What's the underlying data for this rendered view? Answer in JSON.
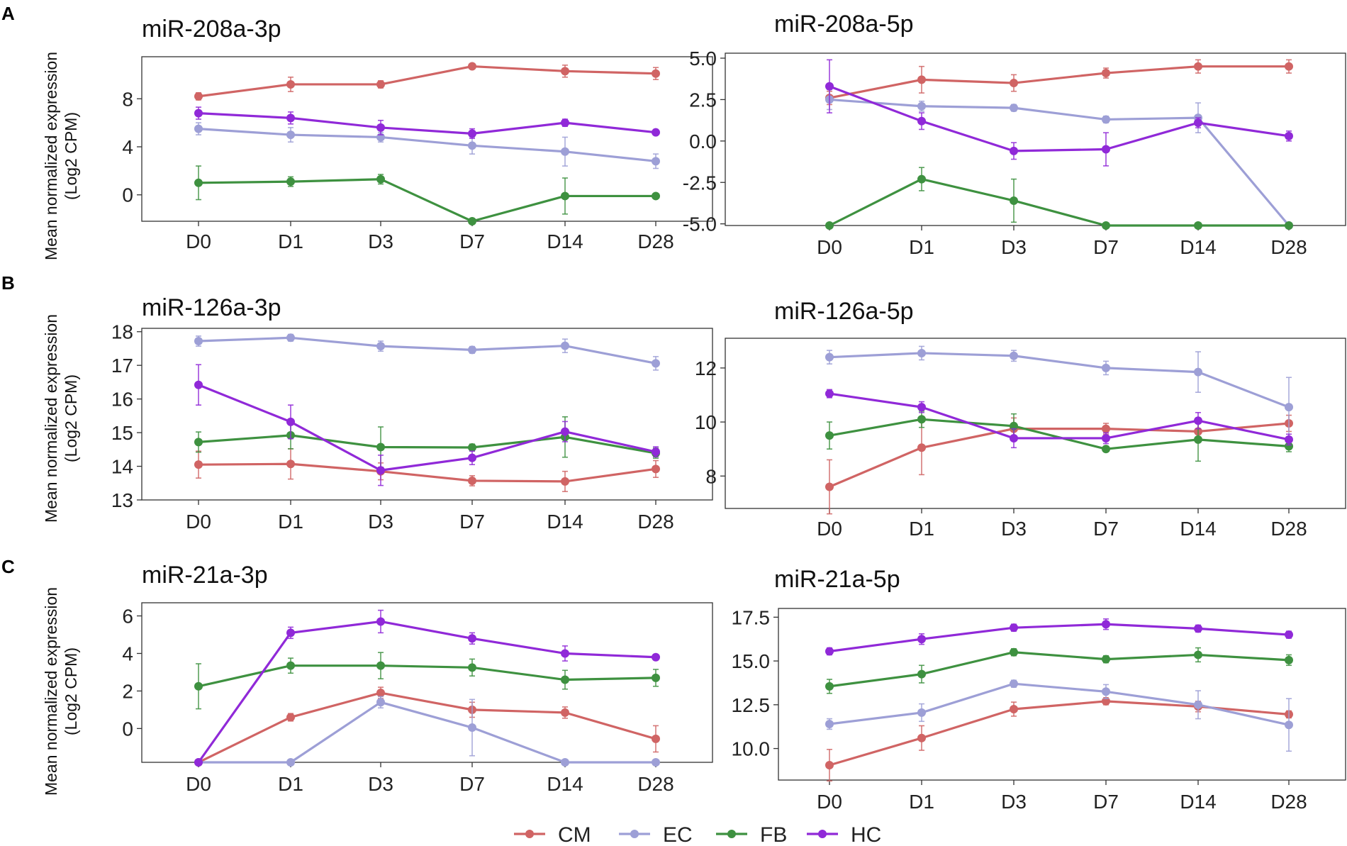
{
  "figure": {
    "y_axis_label_line1": "Mean normalized expression",
    "y_axis_label_line2": "(Log2 CPM)",
    "x_labels": [
      "D0",
      "D1",
      "D3",
      "D7",
      "D14",
      "D28"
    ],
    "panel_letters": [
      "A",
      "B",
      "C"
    ]
  },
  "legend": [
    {
      "name": "CM",
      "color": "#D06464"
    },
    {
      "name": "EC",
      "color": "#9D9FD6"
    },
    {
      "name": "FB",
      "color": "#3E9140"
    },
    {
      "name": "HC",
      "color": "#9029D8"
    }
  ],
  "chart_data": [
    {
      "type": "line",
      "title": "miR-208a-3p",
      "panel": "A",
      "categories": [
        "D0",
        "D1",
        "D3",
        "D7",
        "D14",
        "D28"
      ],
      "ylim": [
        -2.2,
        11.5
      ],
      "yticks": [
        "0",
        "4",
        "8"
      ],
      "ytick_values": [
        0,
        4,
        8
      ],
      "series": [
        {
          "name": "CM",
          "values": [
            8.2,
            9.2,
            9.2,
            10.7,
            10.3,
            10.1
          ],
          "err": [
            0.3,
            0.6,
            0.3,
            0.2,
            0.5,
            0.5
          ]
        },
        {
          "name": "EC",
          "values": [
            5.5,
            5.0,
            4.8,
            4.1,
            3.6,
            2.8
          ],
          "err": [
            0.5,
            0.6,
            0.4,
            0.7,
            1.2,
            0.6
          ]
        },
        {
          "name": "FB",
          "values": [
            1.0,
            1.1,
            1.3,
            -2.2,
            -0.1,
            -0.1
          ],
          "err": [
            1.4,
            0.4,
            0.4,
            0.0,
            1.5,
            0.0
          ]
        },
        {
          "name": "HC",
          "values": [
            6.8,
            6.4,
            5.6,
            5.1,
            6.0,
            5.2
          ],
          "err": [
            0.5,
            0.5,
            0.6,
            0.4,
            0.3,
            0.2
          ]
        }
      ]
    },
    {
      "type": "line",
      "title": "miR-208a-5p",
      "panel": "A",
      "categories": [
        "D0",
        "D1",
        "D3",
        "D7",
        "D14",
        "D28"
      ],
      "ylim": [
        -5.1,
        5.3
      ],
      "yticks": [
        "5.0",
        "2.5",
        "0.0",
        "-2.5",
        "-5.0"
      ],
      "ytick_values": [
        5,
        2.5,
        0,
        -2.5,
        -5
      ],
      "series": [
        {
          "name": "CM",
          "values": [
            2.6,
            3.7,
            3.5,
            4.1,
            4.5,
            4.5
          ],
          "err": [
            0.4,
            0.8,
            0.5,
            0.3,
            0.4,
            0.4
          ]
        },
        {
          "name": "EC",
          "values": [
            2.5,
            2.1,
            2.0,
            1.3,
            1.4,
            -5.1
          ],
          "err": [
            0.6,
            0.3,
            0.2,
            0.2,
            0.9,
            0.0
          ]
        },
        {
          "name": "FB",
          "values": [
            -5.1,
            -2.3,
            -3.6,
            -5.1,
            -5.1,
            -5.1
          ],
          "err": [
            0.0,
            0.7,
            1.3,
            0.0,
            0.0,
            0.0
          ]
        },
        {
          "name": "HC",
          "values": [
            3.3,
            1.2,
            -0.6,
            -0.5,
            1.1,
            0.3
          ],
          "err": [
            1.6,
            0.5,
            0.5,
            1.0,
            0.3,
            0.3
          ]
        }
      ]
    },
    {
      "type": "line",
      "title": "miR-126a-3p",
      "panel": "B",
      "categories": [
        "D0",
        "D1",
        "D3",
        "D7",
        "D14",
        "D28"
      ],
      "ylim": [
        13.0,
        18.1
      ],
      "yticks": [
        "13",
        "14",
        "15",
        "16",
        "17",
        "18"
      ],
      "ytick_values": [
        13,
        14,
        15,
        16,
        17,
        18
      ],
      "series": [
        {
          "name": "CM",
          "values": [
            14.05,
            14.07,
            13.85,
            13.57,
            13.55,
            13.92
          ],
          "err": [
            0.4,
            0.45,
            0.25,
            0.15,
            0.3,
            0.25
          ]
        },
        {
          "name": "EC",
          "values": [
            17.72,
            17.82,
            17.57,
            17.46,
            17.58,
            17.06
          ],
          "err": [
            0.15,
            0.1,
            0.15,
            0.1,
            0.2,
            0.2
          ]
        },
        {
          "name": "FB",
          "values": [
            14.72,
            14.92,
            14.57,
            14.56,
            14.87,
            14.39
          ],
          "err": [
            0.3,
            0.4,
            0.6,
            0.1,
            0.6,
            0.15
          ]
        },
        {
          "name": "HC",
          "values": [
            16.42,
            15.32,
            13.88,
            14.25,
            15.03,
            14.43
          ],
          "err": [
            0.6,
            0.5,
            0.45,
            0.2,
            0.3,
            0.15
          ]
        }
      ]
    },
    {
      "type": "line",
      "title": "miR-126a-5p",
      "panel": "B",
      "categories": [
        "D0",
        "D1",
        "D3",
        "D7",
        "D14",
        "D28"
      ],
      "ylim": [
        6.8,
        13.1
      ],
      "yticks": [
        "8",
        "10",
        "12"
      ],
      "ytick_values": [
        8,
        10,
        12
      ],
      "series": [
        {
          "name": "CM",
          "values": [
            7.6,
            9.05,
            9.75,
            9.75,
            9.65,
            9.95
          ],
          "err": [
            1.0,
            1.0,
            0.4,
            0.2,
            0.3,
            0.3
          ]
        },
        {
          "name": "EC",
          "values": [
            12.4,
            12.55,
            12.45,
            12.0,
            11.85,
            10.55
          ],
          "err": [
            0.25,
            0.25,
            0.2,
            0.25,
            0.75,
            1.1
          ]
        },
        {
          "name": "FB",
          "values": [
            9.5,
            10.1,
            9.85,
            9.0,
            9.35,
            9.1
          ],
          "err": [
            0.5,
            0.3,
            0.45,
            0.1,
            0.8,
            0.2
          ]
        },
        {
          "name": "HC",
          "values": [
            11.05,
            10.55,
            9.4,
            9.4,
            10.05,
            9.35
          ],
          "err": [
            0.15,
            0.2,
            0.35,
            0.2,
            0.3,
            0.2
          ]
        }
      ]
    },
    {
      "type": "line",
      "title": "miR-21a-3p",
      "panel": "C",
      "categories": [
        "D0",
        "D1",
        "D3",
        "D7",
        "D14",
        "D28"
      ],
      "ylim": [
        -1.8,
        6.7
      ],
      "yticks": [
        "0",
        "2",
        "4",
        "6"
      ],
      "ytick_values": [
        0,
        2,
        4,
        6
      ],
      "series": [
        {
          "name": "CM",
          "values": [
            -1.8,
            0.6,
            1.9,
            1.0,
            0.85,
            -0.55
          ],
          "err": [
            0.0,
            0.2,
            0.3,
            0.4,
            0.3,
            0.7
          ]
        },
        {
          "name": "EC",
          "values": [
            -1.8,
            -1.8,
            1.4,
            0.05,
            -1.8,
            -1.8
          ],
          "err": [
            0.0,
            0.0,
            0.3,
            1.5,
            0.0,
            0.0
          ]
        },
        {
          "name": "FB",
          "values": [
            2.25,
            3.35,
            3.35,
            3.25,
            2.6,
            2.7
          ],
          "err": [
            1.2,
            0.4,
            0.7,
            0.45,
            0.5,
            0.45
          ]
        },
        {
          "name": "HC",
          "values": [
            -1.8,
            5.1,
            5.7,
            4.8,
            4.0,
            3.8
          ],
          "err": [
            0.0,
            0.3,
            0.6,
            0.3,
            0.4,
            0.15
          ]
        }
      ]
    },
    {
      "type": "line",
      "title": "miR-21a-5p",
      "panel": "C",
      "categories": [
        "D0",
        "D1",
        "D3",
        "D7",
        "D14",
        "D28"
      ],
      "ylim": [
        8.2,
        18.0
      ],
      "yticks": [
        "10.0",
        "12.5",
        "15.0",
        "17.5"
      ],
      "ytick_values": [
        10,
        12.5,
        15,
        17.5
      ],
      "series": [
        {
          "name": "CM",
          "values": [
            9.05,
            10.6,
            12.25,
            12.7,
            12.4,
            11.95
          ],
          "err": [
            0.9,
            0.7,
            0.4,
            0.2,
            0.3,
            0.2
          ]
        },
        {
          "name": "EC",
          "values": [
            11.4,
            12.05,
            13.7,
            13.25,
            12.5,
            11.35
          ],
          "err": [
            0.3,
            0.5,
            0.2,
            0.4,
            0.8,
            1.5
          ]
        },
        {
          "name": "FB",
          "values": [
            13.55,
            14.25,
            15.5,
            15.1,
            15.35,
            15.05
          ],
          "err": [
            0.4,
            0.5,
            0.2,
            0.2,
            0.4,
            0.3
          ]
        },
        {
          "name": "HC",
          "values": [
            15.55,
            16.25,
            16.9,
            17.1,
            16.85,
            16.5
          ],
          "err": [
            0.2,
            0.3,
            0.2,
            0.3,
            0.2,
            0.2
          ]
        }
      ]
    }
  ]
}
